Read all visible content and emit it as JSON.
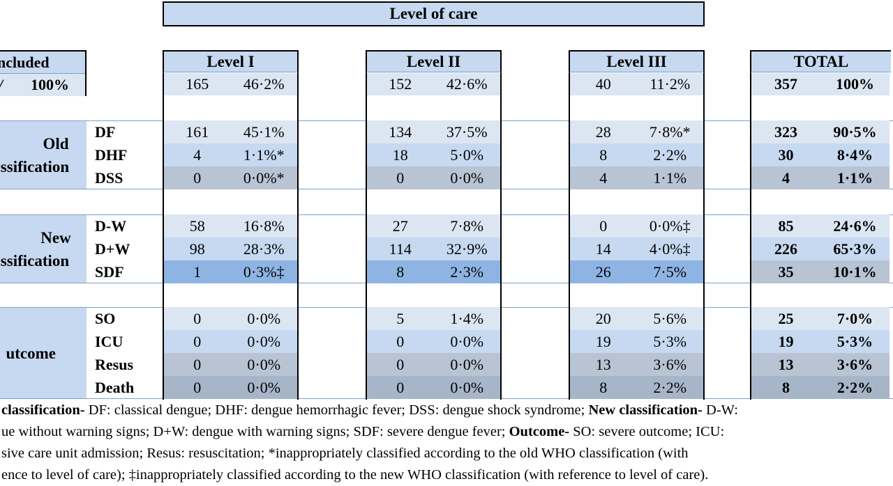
{
  "title": "Level of care",
  "included": {
    "header": "ncluded",
    "left": "/",
    "right": "100%"
  },
  "levels": [
    {
      "name": "Level I",
      "n": "165",
      "pct": "46·2%"
    },
    {
      "name": "Level II",
      "n": "152",
      "pct": "42·6%"
    },
    {
      "name": "Level III",
      "n": "40",
      "pct": "11·2%"
    },
    {
      "name": "TOTAL",
      "n": "357",
      "pct": "100%"
    }
  ],
  "groups": [
    {
      "label": [
        "Old",
        "ssification"
      ],
      "rows": [
        {
          "name": "DF",
          "vals": [
            [
              "161",
              "45·1%"
            ],
            [
              "134",
              "37·5%"
            ],
            [
              "28",
              "7·8%*"
            ],
            [
              "323",
              "90·5%"
            ]
          ]
        },
        {
          "name": "DHF",
          "vals": [
            [
              "4",
              "1·1%*"
            ],
            [
              "18",
              "5·0%"
            ],
            [
              "8",
              "2·2%"
            ],
            [
              "30",
              "8·4%"
            ]
          ]
        },
        {
          "name": "DSS",
          "vals": [
            [
              "0",
              "0·0%*"
            ],
            [
              "0",
              "0·0%"
            ],
            [
              "4",
              "1·1%"
            ],
            [
              "4",
              "1·1%"
            ]
          ]
        }
      ]
    },
    {
      "label": [
        "New",
        "ssification"
      ],
      "rows": [
        {
          "name": "D-W",
          "vals": [
            [
              "58",
              "16·8%"
            ],
            [
              "27",
              "7·8%"
            ],
            [
              "0",
              "0·0%‡"
            ],
            [
              "85",
              "24·6%"
            ]
          ]
        },
        {
          "name": "D+W",
          "vals": [
            [
              "98",
              "28·3%"
            ],
            [
              "114",
              "32·9%"
            ],
            [
              "14",
              "4·0%‡"
            ],
            [
              "226",
              "65·3%"
            ]
          ]
        },
        {
          "name": "SDF",
          "vals": [
            [
              "1",
              "0·3%‡"
            ],
            [
              "8",
              "2·3%"
            ],
            [
              "26",
              "7·5%"
            ],
            [
              "35",
              "10·1%"
            ]
          ]
        }
      ]
    },
    {
      "label": [
        "utcome"
      ],
      "rows": [
        {
          "name": "SO",
          "vals": [
            [
              "0",
              "0·0%"
            ],
            [
              "5",
              "1·4%"
            ],
            [
              "20",
              "5·6%"
            ],
            [
              "25",
              "7·0%"
            ]
          ]
        },
        {
          "name": "ICU",
          "vals": [
            [
              "0",
              "0·0%"
            ],
            [
              "0",
              "0·0%"
            ],
            [
              "19",
              "5·3%"
            ],
            [
              "19",
              "5·3%"
            ]
          ]
        },
        {
          "name": "Resus",
          "vals": [
            [
              "0",
              "0·0%"
            ],
            [
              "0",
              "0·0%"
            ],
            [
              "13",
              "3·6%"
            ],
            [
              "13",
              "3·6%"
            ]
          ]
        },
        {
          "name": "Death",
          "vals": [
            [
              "0",
              "0·0%"
            ],
            [
              "0",
              "0·0%"
            ],
            [
              "8",
              "2·2%"
            ],
            [
              "8",
              "2·2%"
            ]
          ]
        }
      ]
    }
  ],
  "footnote": {
    "l1a": "classification-",
    "l1b": " DF: classical dengue; DHF: dengue hemorrhagic fever; DSS: dengue shock syndrome; ",
    "l1c": "New classification-",
    "l1d": " D-W:",
    "l2a": "ue without warning signs; D+W: dengue with warning signs; SDF: severe dengue fever; ",
    "l2b": "Outcome-",
    "l2c": " SO: severe outcome; ICU:",
    "l3": "sive care unit admission; Resus: resuscitation; *inappropriately classified according to the old WHO classification (with",
    "l4": "ence to level of care); ‡inappropriately classified according to the new WHO classification (with reference to level of care)."
  },
  "colors": {
    "header": "#c6d9f1",
    "row_light": "#dce6f2",
    "row_mid": "#c6d9f1",
    "row_gray1": "#b8c4d4",
    "row_gray2": "#a7b5c9",
    "sdf_blue": "#8eb4e3"
  }
}
